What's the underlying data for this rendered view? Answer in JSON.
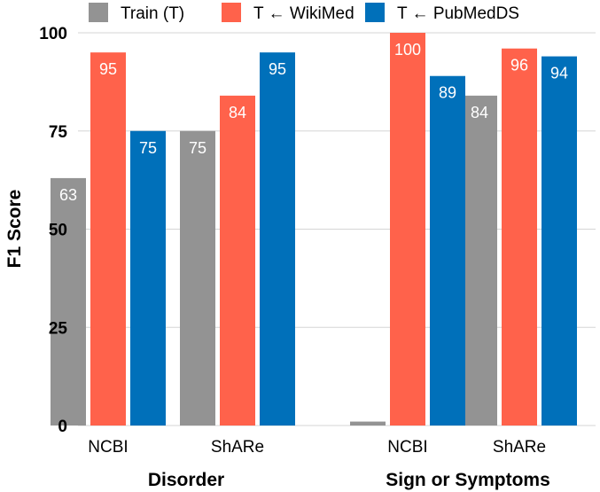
{
  "chart_data": {
    "type": "bar",
    "ylabel": "F1 Score",
    "xlabel": "",
    "ylim": [
      0,
      100
    ],
    "yticks": [
      0,
      25,
      50,
      75,
      100
    ],
    "grid": true,
    "legend_position": "top",
    "groups": [
      {
        "label": "Disorder",
        "categories": [
          "NCBI",
          "ShARe"
        ]
      },
      {
        "label": "Sign or Symptoms",
        "categories": [
          "NCBI",
          "ShARe"
        ]
      }
    ],
    "categories": [
      "NCBI",
      "ShARe",
      "NCBI",
      "ShARe"
    ],
    "series": [
      {
        "name": "Train (T)",
        "color": "#939393",
        "values": [
          63,
          75,
          1,
          84
        ],
        "labels": [
          "63",
          "75",
          "",
          "84"
        ]
      },
      {
        "name": "T ← WikiMed",
        "color": "#ff624b",
        "values": [
          95,
          84,
          100,
          96
        ],
        "labels": [
          "95",
          "84",
          "100",
          "96"
        ]
      },
      {
        "name": "T ← PubMedDS",
        "color": "#0070ba",
        "values": [
          75,
          95,
          89,
          94
        ],
        "labels": [
          "75",
          "95",
          "89",
          "94"
        ]
      }
    ]
  }
}
